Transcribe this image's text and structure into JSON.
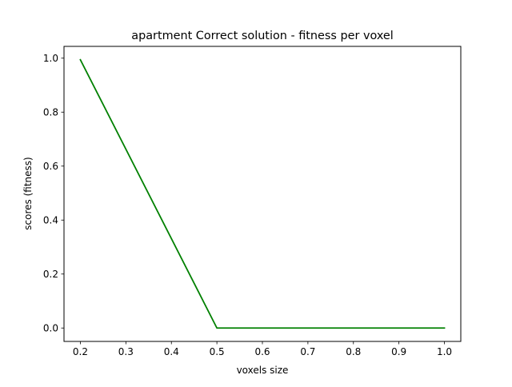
{
  "chart_data": {
    "type": "line",
    "title": "apartment Correct solution - fitness per voxel",
    "xlabel": "voxels size",
    "ylabel": "scores (fitness)",
    "xlim": [
      0.164,
      1.036
    ],
    "ylim": [
      -0.0497,
      1.0437
    ],
    "x_ticks": [
      0.2,
      0.3,
      0.4,
      0.5,
      0.6,
      0.7,
      0.8,
      0.9,
      1.0
    ],
    "x_tick_labels": [
      "0.2",
      "0.3",
      "0.4",
      "0.5",
      "0.6",
      "0.7",
      "0.8",
      "0.9",
      "1.0"
    ],
    "y_ticks": [
      0.0,
      0.2,
      0.4,
      0.6,
      0.8,
      1.0
    ],
    "y_tick_labels": [
      "0.0",
      "0.2",
      "0.4",
      "0.6",
      "0.8",
      "1.0"
    ],
    "grid": false,
    "legend": "none",
    "series": [
      {
        "color": "#008000",
        "x": [
          0.2,
          0.5,
          0.6,
          0.7,
          0.8,
          0.9,
          1.0
        ],
        "y": [
          0.994,
          0.0,
          0.0,
          0.0,
          0.0,
          0.0,
          0.0
        ]
      }
    ]
  }
}
